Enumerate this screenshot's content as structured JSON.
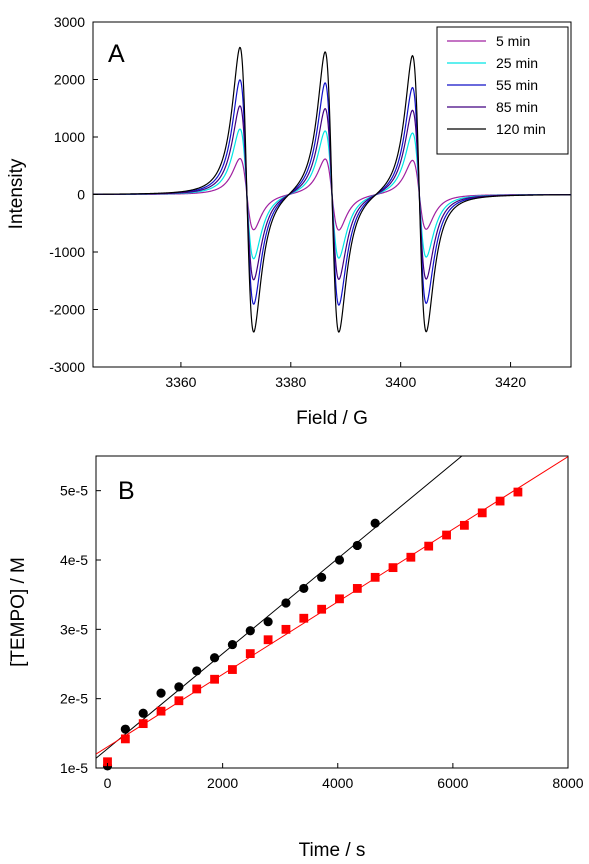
{
  "chart_data": [
    {
      "type": "line",
      "panel_label": "A",
      "xlabel": "Field / G",
      "ylabel": "Intensity",
      "xlim": [
        3344,
        3431
      ],
      "ylim": [
        -3000,
        3000
      ],
      "x_ticks": [
        3360,
        3380,
        3400,
        3420
      ],
      "y_ticks": [
        -3000,
        -2000,
        -1000,
        0,
        1000,
        2000,
        3000
      ],
      "grid": false,
      "legend_position": "top-right",
      "line_centers": [
        3372.0,
        3387.5,
        3403.4
      ],
      "series": [
        {
          "name": "5 min",
          "color": "#a020a0",
          "peak_heights": [
            620,
            620,
            600
          ],
          "trough_depths": [
            -620,
            -620,
            -600
          ]
        },
        {
          "name": "25 min",
          "color": "#00e5e5",
          "peak_heights": [
            1130,
            1110,
            1080
          ],
          "trough_depths": [
            -1130,
            -1110,
            -1080
          ]
        },
        {
          "name": "55 min",
          "color": "#1010c8",
          "peak_heights": [
            1980,
            1950,
            1880
          ],
          "trough_depths": [
            -1930,
            -1930,
            -1880
          ]
        },
        {
          "name": "85 min",
          "color": "#400080",
          "peak_heights": [
            1530,
            1500,
            1480
          ],
          "trough_depths": [
            -1500,
            -1480,
            -1460
          ]
        },
        {
          "name": "120 min",
          "color": "#000000",
          "peak_heights": [
            2540,
            2490,
            2440
          ],
          "trough_depths": [
            -2420,
            -2400,
            -2370
          ]
        }
      ]
    },
    {
      "type": "scatter",
      "panel_label": "B",
      "xlabel": "Time / s",
      "ylabel": "[TEMPO] / M",
      "xlim": [
        -200,
        8000
      ],
      "ylim": [
        1e-05,
        5.5e-05
      ],
      "x_ticks": [
        0,
        2000,
        4000,
        6000,
        8000
      ],
      "y_ticks": [
        1e-05,
        2e-05,
        3e-05,
        4e-05,
        5e-05
      ],
      "y_tick_labels": [
        "1e-5",
        "2e-5",
        "3e-5",
        "4e-5",
        "5e-5"
      ],
      "grid": false,
      "series": [
        {
          "marker": "circle",
          "color": "#000000",
          "x": [
            0,
            310,
            620,
            930,
            1240,
            1550,
            1860,
            2170,
            2480,
            2790,
            3100,
            3410,
            3720,
            4030,
            4340,
            4650
          ],
          "y": [
            1.03e-05,
            1.56e-05,
            1.79e-05,
            2.08e-05,
            2.17e-05,
            2.4e-05,
            2.59e-05,
            2.78e-05,
            2.98e-05,
            3.11e-05,
            3.38e-05,
            3.59e-05,
            3.75e-05,
            4e-05,
            4.21e-05,
            4.53e-05
          ],
          "fit": {
            "x": [
              -200,
              6200
            ],
            "y": [
              1.14e-05,
              5.53e-05
            ]
          }
        },
        {
          "marker": "square",
          "color": "#ff0000",
          "x": [
            0,
            310,
            620,
            930,
            1240,
            1550,
            1860,
            2170,
            2480,
            2790,
            3100,
            3410,
            3720,
            4030,
            4340,
            4650,
            4960,
            5270,
            5580,
            5890,
            6200,
            6510,
            6820,
            7130
          ],
          "y": [
            1.09e-05,
            1.42e-05,
            1.64e-05,
            1.82e-05,
            1.97e-05,
            2.14e-05,
            2.28e-05,
            2.42e-05,
            2.65e-05,
            2.85e-05,
            3e-05,
            3.16e-05,
            3.29e-05,
            3.44e-05,
            3.59e-05,
            3.75e-05,
            3.89e-05,
            4.04e-05,
            4.2e-05,
            4.36e-05,
            4.5e-05,
            4.68e-05,
            4.85e-05,
            4.98e-05
          ],
          "fit": {
            "x": [
              -200,
              8000
            ],
            "y": [
              1.2e-05,
              5.49e-05
            ]
          }
        }
      ]
    }
  ]
}
